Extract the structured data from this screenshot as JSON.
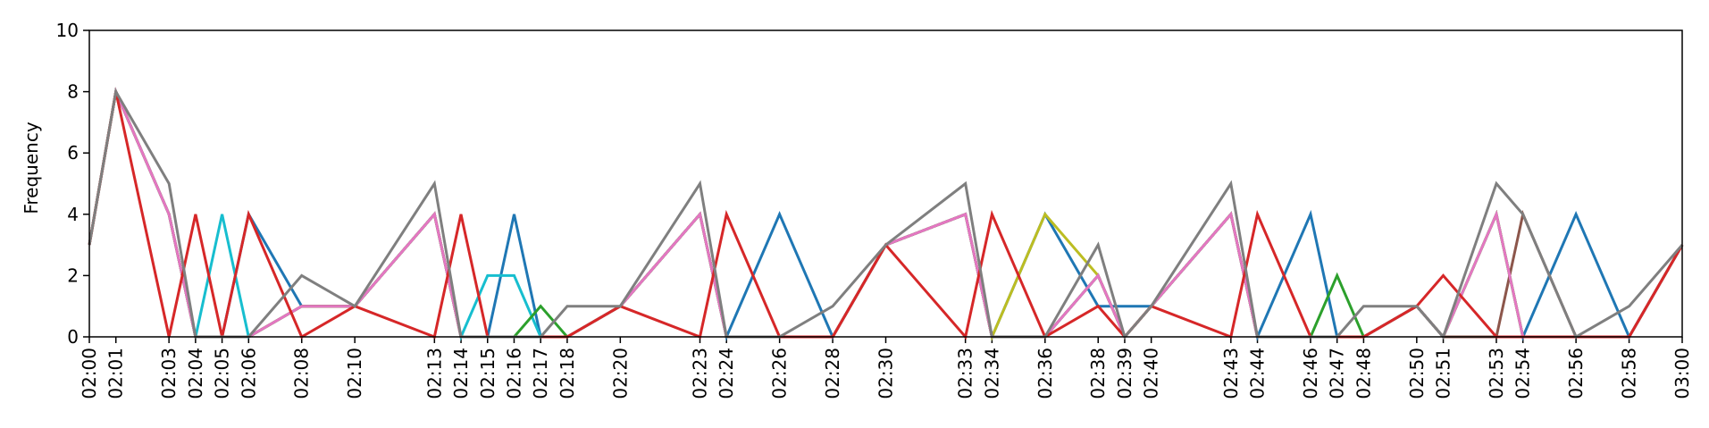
{
  "chart_data": {
    "type": "line",
    "title": "",
    "xlabel": "",
    "ylabel": "Frequency",
    "ylim": [
      0,
      10
    ],
    "yticks": [
      "0",
      "2",
      "4",
      "6",
      "8",
      "10"
    ],
    "xlim": [
      "02:00",
      "03:00"
    ],
    "xticks": [
      "02:00",
      "02:01",
      "02:03",
      "02:04",
      "02:05",
      "02:06",
      "02:08",
      "02:10",
      "02:13",
      "02:14",
      "02:15",
      "02:16",
      "02:17",
      "02:18",
      "02:20",
      "02:23",
      "02:24",
      "02:26",
      "02:28",
      "02:30",
      "02:33",
      "02:34",
      "02:36",
      "02:38",
      "02:39",
      "02:40",
      "02:43",
      "02:44",
      "02:46",
      "02:47",
      "02:48",
      "02:50",
      "02:51",
      "02:53",
      "02:54",
      "02:56",
      "02:58",
      "03:00"
    ],
    "grid": false,
    "legend": "none",
    "series": [
      {
        "color": "#1f77b4",
        "points": [
          [
            "02:00",
            3
          ],
          [
            "02:01",
            8
          ],
          [
            "02:03",
            4
          ],
          [
            "02:04",
            0
          ],
          [
            "02:05",
            0
          ],
          [
            "02:06",
            4
          ],
          [
            "02:08",
            1
          ],
          [
            "02:10",
            1
          ],
          [
            "02:13",
            4
          ],
          [
            "02:14",
            0
          ],
          [
            "02:15",
            0
          ],
          [
            "02:16",
            4
          ],
          [
            "02:17",
            0
          ],
          [
            "02:18",
            0
          ],
          [
            "02:20",
            1
          ],
          [
            "02:23",
            4
          ],
          [
            "02:24",
            0
          ],
          [
            "02:26",
            4
          ],
          [
            "02:28",
            0
          ],
          [
            "02:30",
            3
          ],
          [
            "02:33",
            4
          ],
          [
            "02:34",
            0
          ],
          [
            "02:36",
            4
          ],
          [
            "02:38",
            1
          ],
          [
            "02:39",
            1
          ],
          [
            "02:40",
            1
          ],
          [
            "02:43",
            4
          ],
          [
            "02:44",
            0
          ],
          [
            "02:46",
            4
          ],
          [
            "02:47",
            0
          ],
          [
            "02:48",
            0
          ],
          [
            "02:50",
            1
          ],
          [
            "02:51",
            0
          ],
          [
            "02:53",
            4
          ],
          [
            "02:54",
            0
          ],
          [
            "02:56",
            4
          ],
          [
            "02:58",
            0
          ],
          [
            "03:00",
            3
          ]
        ]
      },
      {
        "color": "#17becf",
        "points": [
          [
            "02:00",
            3
          ],
          [
            "02:01",
            8
          ],
          [
            "02:03",
            4
          ],
          [
            "02:04",
            0
          ],
          [
            "02:05",
            4
          ],
          [
            "02:06",
            0
          ],
          [
            "02:08",
            1
          ],
          [
            "02:10",
            1
          ],
          [
            "02:13",
            4
          ],
          [
            "02:14",
            0
          ],
          [
            "02:15",
            2
          ],
          [
            "02:16",
            2
          ],
          [
            "02:17",
            0
          ],
          [
            "02:18",
            0
          ],
          [
            "02:20",
            1
          ],
          [
            "02:23",
            4
          ],
          [
            "02:24",
            0
          ],
          [
            "02:26",
            0
          ],
          [
            "02:28",
            0
          ],
          [
            "02:30",
            3
          ],
          [
            "02:33",
            4
          ],
          [
            "02:34",
            0
          ],
          [
            "02:36",
            0
          ],
          [
            "02:38",
            2
          ],
          [
            "02:39",
            0
          ],
          [
            "02:40",
            1
          ],
          [
            "02:43",
            4
          ],
          [
            "02:44",
            0
          ],
          [
            "02:46",
            0
          ],
          [
            "02:47",
            0
          ],
          [
            "02:48",
            0
          ],
          [
            "02:50",
            1
          ],
          [
            "02:51",
            0
          ],
          [
            "02:53",
            4
          ],
          [
            "02:54",
            0
          ],
          [
            "02:56",
            0
          ],
          [
            "02:58",
            0
          ],
          [
            "03:00",
            3
          ]
        ]
      },
      {
        "color": "#2ca02c",
        "points": [
          [
            "02:00",
            3
          ],
          [
            "02:01",
            8
          ],
          [
            "02:03",
            4
          ],
          [
            "02:04",
            0
          ],
          [
            "02:05",
            0
          ],
          [
            "02:06",
            0
          ],
          [
            "02:08",
            1
          ],
          [
            "02:10",
            1
          ],
          [
            "02:13",
            4
          ],
          [
            "02:14",
            0
          ],
          [
            "02:15",
            0
          ],
          [
            "02:16",
            0
          ],
          [
            "02:17",
            1
          ],
          [
            "02:18",
            0
          ],
          [
            "02:20",
            1
          ],
          [
            "02:23",
            4
          ],
          [
            "02:24",
            0
          ],
          [
            "02:26",
            0
          ],
          [
            "02:28",
            0
          ],
          [
            "02:30",
            3
          ],
          [
            "02:33",
            4
          ],
          [
            "02:34",
            0
          ],
          [
            "02:36",
            0
          ],
          [
            "02:38",
            2
          ],
          [
            "02:39",
            0
          ],
          [
            "02:40",
            1
          ],
          [
            "02:43",
            4
          ],
          [
            "02:44",
            0
          ],
          [
            "02:46",
            0
          ],
          [
            "02:47",
            2
          ],
          [
            "02:48",
            0
          ],
          [
            "02:50",
            1
          ],
          [
            "02:51",
            0
          ],
          [
            "02:53",
            4
          ],
          [
            "02:54",
            0
          ],
          [
            "02:56",
            0
          ],
          [
            "02:58",
            0
          ],
          [
            "03:00",
            3
          ]
        ]
      },
      {
        "color": "#bcbd22",
        "points": [
          [
            "02:00",
            3
          ],
          [
            "02:01",
            8
          ],
          [
            "02:03",
            4
          ],
          [
            "02:04",
            0
          ],
          [
            "02:05",
            0
          ],
          [
            "02:06",
            0
          ],
          [
            "02:08",
            1
          ],
          [
            "02:10",
            1
          ],
          [
            "02:13",
            4
          ],
          [
            "02:14",
            0
          ],
          [
            "02:15",
            0
          ],
          [
            "02:16",
            0
          ],
          [
            "02:17",
            0
          ],
          [
            "02:18",
            0
          ],
          [
            "02:20",
            1
          ],
          [
            "02:23",
            4
          ],
          [
            "02:24",
            0
          ],
          [
            "02:26",
            0
          ],
          [
            "02:28",
            0
          ],
          [
            "02:30",
            3
          ],
          [
            "02:33",
            4
          ],
          [
            "02:34",
            0
          ],
          [
            "02:36",
            4
          ],
          [
            "02:38",
            2
          ],
          [
            "02:39",
            0
          ],
          [
            "02:40",
            1
          ],
          [
            "02:43",
            4
          ],
          [
            "02:44",
            0
          ],
          [
            "02:46",
            0
          ],
          [
            "02:47",
            0
          ],
          [
            "02:48",
            0
          ],
          [
            "02:50",
            1
          ],
          [
            "02:51",
            0
          ],
          [
            "02:53",
            4
          ],
          [
            "02:54",
            0
          ],
          [
            "02:56",
            0
          ],
          [
            "02:58",
            0
          ],
          [
            "03:00",
            3
          ]
        ]
      },
      {
        "color": "#8c564b",
        "points": [
          [
            "02:00",
            3
          ],
          [
            "02:01",
            8
          ],
          [
            "02:03",
            4
          ],
          [
            "02:04",
            0
          ],
          [
            "02:05",
            0
          ],
          [
            "02:06",
            0
          ],
          [
            "02:08",
            1
          ],
          [
            "02:10",
            1
          ],
          [
            "02:13",
            4
          ],
          [
            "02:14",
            0
          ],
          [
            "02:15",
            0
          ],
          [
            "02:16",
            0
          ],
          [
            "02:17",
            0
          ],
          [
            "02:18",
            0
          ],
          [
            "02:20",
            1
          ],
          [
            "02:23",
            4
          ],
          [
            "02:24",
            0
          ],
          [
            "02:26",
            0
          ],
          [
            "02:28",
            0
          ],
          [
            "02:30",
            3
          ],
          [
            "02:33",
            4
          ],
          [
            "02:34",
            0
          ],
          [
            "02:36",
            0
          ],
          [
            "02:38",
            2
          ],
          [
            "02:39",
            0
          ],
          [
            "02:40",
            1
          ],
          [
            "02:43",
            4
          ],
          [
            "02:44",
            0
          ],
          [
            "02:46",
            0
          ],
          [
            "02:47",
            0
          ],
          [
            "02:48",
            0
          ],
          [
            "02:50",
            1
          ],
          [
            "02:51",
            0
          ],
          [
            "02:53",
            0
          ],
          [
            "02:54",
            4
          ],
          [
            "02:56",
            0
          ],
          [
            "02:58",
            0
          ],
          [
            "03:00",
            3
          ]
        ]
      },
      {
        "color": "#e377c2",
        "points": [
          [
            "02:00",
            3
          ],
          [
            "02:01",
            8
          ],
          [
            "02:03",
            4
          ],
          [
            "02:04",
            0
          ],
          [
            "02:05",
            0
          ],
          [
            "02:06",
            0
          ],
          [
            "02:08",
            1
          ],
          [
            "02:10",
            1
          ],
          [
            "02:13",
            4
          ],
          [
            "02:14",
            0
          ],
          [
            "02:15",
            0
          ],
          [
            "02:16",
            0
          ],
          [
            "02:17",
            0
          ],
          [
            "02:18",
            0
          ],
          [
            "02:20",
            1
          ],
          [
            "02:23",
            4
          ],
          [
            "02:24",
            0
          ],
          [
            "02:26",
            0
          ],
          [
            "02:28",
            0
          ],
          [
            "02:30",
            3
          ],
          [
            "02:33",
            4
          ],
          [
            "02:34",
            0
          ],
          [
            "02:36",
            0
          ],
          [
            "02:38",
            2
          ],
          [
            "02:39",
            0
          ],
          [
            "02:40",
            1
          ],
          [
            "02:43",
            4
          ],
          [
            "02:44",
            0
          ],
          [
            "02:46",
            0
          ],
          [
            "02:47",
            0
          ],
          [
            "02:48",
            0
          ],
          [
            "02:50",
            1
          ],
          [
            "02:51",
            0
          ],
          [
            "02:53",
            4
          ],
          [
            "02:54",
            0
          ],
          [
            "02:56",
            0
          ],
          [
            "02:58",
            0
          ],
          [
            "03:00",
            3
          ]
        ]
      },
      {
        "color": "#d62728",
        "points": [
          [
            "02:00",
            3
          ],
          [
            "02:01",
            8
          ],
          [
            "02:03",
            0
          ],
          [
            "02:04",
            4
          ],
          [
            "02:05",
            0
          ],
          [
            "02:06",
            4
          ],
          [
            "02:08",
            0
          ],
          [
            "02:10",
            1
          ],
          [
            "02:13",
            0
          ],
          [
            "02:14",
            4
          ],
          [
            "02:15",
            0
          ],
          [
            "02:16",
            0
          ],
          [
            "02:17",
            0
          ],
          [
            "02:18",
            0
          ],
          [
            "02:20",
            1
          ],
          [
            "02:23",
            0
          ],
          [
            "02:24",
            4
          ],
          [
            "02:26",
            0
          ],
          [
            "02:28",
            0
          ],
          [
            "02:30",
            3
          ],
          [
            "02:33",
            0
          ],
          [
            "02:34",
            4
          ],
          [
            "02:36",
            0
          ],
          [
            "02:38",
            1
          ],
          [
            "02:39",
            0
          ],
          [
            "02:40",
            1
          ],
          [
            "02:43",
            0
          ],
          [
            "02:44",
            4
          ],
          [
            "02:46",
            0
          ],
          [
            "02:47",
            0
          ],
          [
            "02:48",
            0
          ],
          [
            "02:50",
            1
          ],
          [
            "02:51",
            2
          ],
          [
            "02:53",
            0
          ],
          [
            "02:54",
            0
          ],
          [
            "02:56",
            0
          ],
          [
            "02:58",
            0
          ],
          [
            "03:00",
            3
          ]
        ]
      },
      {
        "color": "#7f7f7f",
        "points": [
          [
            "02:00",
            3
          ],
          [
            "02:01",
            8
          ],
          [
            "02:03",
            5
          ],
          [
            "02:04",
            0
          ],
          [
            "02:05",
            0
          ],
          [
            "02:06",
            0
          ],
          [
            "02:08",
            2
          ],
          [
            "02:10",
            1
          ],
          [
            "02:13",
            5
          ],
          [
            "02:14",
            0
          ],
          [
            "02:15",
            0
          ],
          [
            "02:16",
            0
          ],
          [
            "02:17",
            0
          ],
          [
            "02:18",
            1
          ],
          [
            "02:20",
            1
          ],
          [
            "02:23",
            5
          ],
          [
            "02:24",
            0
          ],
          [
            "02:26",
            0
          ],
          [
            "02:28",
            1
          ],
          [
            "02:30",
            3
          ],
          [
            "02:33",
            5
          ],
          [
            "02:34",
            0
          ],
          [
            "02:36",
            0
          ],
          [
            "02:38",
            3
          ],
          [
            "02:39",
            0
          ],
          [
            "02:40",
            1
          ],
          [
            "02:43",
            5
          ],
          [
            "02:44",
            0
          ],
          [
            "02:46",
            0
          ],
          [
            "02:47",
            0
          ],
          [
            "02:48",
            1
          ],
          [
            "02:50",
            1
          ],
          [
            "02:51",
            0
          ],
          [
            "02:53",
            5
          ],
          [
            "02:54",
            4
          ],
          [
            "02:56",
            0
          ],
          [
            "02:58",
            1
          ],
          [
            "03:00",
            3
          ]
        ]
      }
    ]
  }
}
